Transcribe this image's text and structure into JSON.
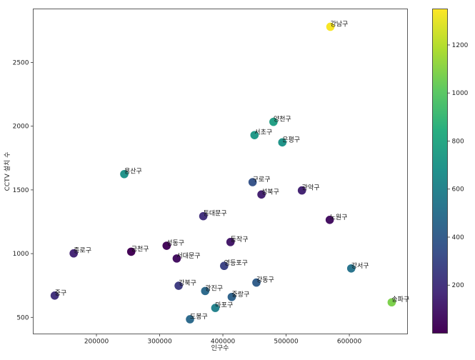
{
  "chart_data": {
    "type": "scatter",
    "title": "",
    "xlabel": "인구수",
    "ylabel": "CCTV 설치 수",
    "xlim": [
      100000,
      692000
    ],
    "ylim": [
      370,
      2920
    ],
    "xticks": [
      200000,
      300000,
      400000,
      500000,
      600000
    ],
    "yticks": [
      500,
      1000,
      1500,
      2000,
      2500
    ],
    "grid": false,
    "colormap": "viridis",
    "colorbar": {
      "min": 0,
      "max": 1350,
      "ticks": [
        200,
        400,
        600,
        800,
        1000,
        1200
      ]
    },
    "points": [
      {
        "label": "강남구",
        "x": 570000,
        "y": 2780,
        "c": 1340
      },
      {
        "label": "양천구",
        "x": 480000,
        "y": 2034,
        "c": 760
      },
      {
        "label": "서초구",
        "x": 450000,
        "y": 1930,
        "c": 720
      },
      {
        "label": "은평구",
        "x": 494000,
        "y": 1873,
        "c": 700
      },
      {
        "label": "용산구",
        "x": 244000,
        "y": 1624,
        "c": 690
      },
      {
        "label": "구로구",
        "x": 447000,
        "y": 1561,
        "c": 360
      },
      {
        "label": "성북구",
        "x": 461000,
        "y": 1464,
        "c": 130
      },
      {
        "label": "관악구",
        "x": 525000,
        "y": 1496,
        "c": 140
      },
      {
        "label": "동대문구",
        "x": 369000,
        "y": 1294,
        "c": 200
      },
      {
        "label": "노원구",
        "x": 569000,
        "y": 1265,
        "c": 60
      },
      {
        "label": "동작구",
        "x": 412000,
        "y": 1091,
        "c": 100
      },
      {
        "label": "성동구",
        "x": 311000,
        "y": 1062,
        "c": 30
      },
      {
        "label": "금천구",
        "x": 255000,
        "y": 1015,
        "c": 10
      },
      {
        "label": "종로구",
        "x": 164000,
        "y": 1002,
        "c": 150
      },
      {
        "label": "서대문구",
        "x": 327000,
        "y": 962,
        "c": 60
      },
      {
        "label": "영등포구",
        "x": 402000,
        "y": 904,
        "c": 280
      },
      {
        "label": "강서구",
        "x": 603000,
        "y": 884,
        "c": 520
      },
      {
        "label": "강동구",
        "x": 453000,
        "y": 773,
        "c": 410
      },
      {
        "label": "강북구",
        "x": 330000,
        "y": 748,
        "c": 250
      },
      {
        "label": "광진구",
        "x": 372000,
        "y": 707,
        "c": 470
      },
      {
        "label": "중구",
        "x": 134000,
        "y": 671,
        "c": 200
      },
      {
        "label": "중랑구",
        "x": 414000,
        "y": 660,
        "c": 440
      },
      {
        "label": "송파구",
        "x": 667000,
        "y": 618,
        "c": 1080
      },
      {
        "label": "마포구",
        "x": 388000,
        "y": 574,
        "c": 600
      },
      {
        "label": "도봉구",
        "x": 348000,
        "y": 485,
        "c": 470
      }
    ]
  }
}
